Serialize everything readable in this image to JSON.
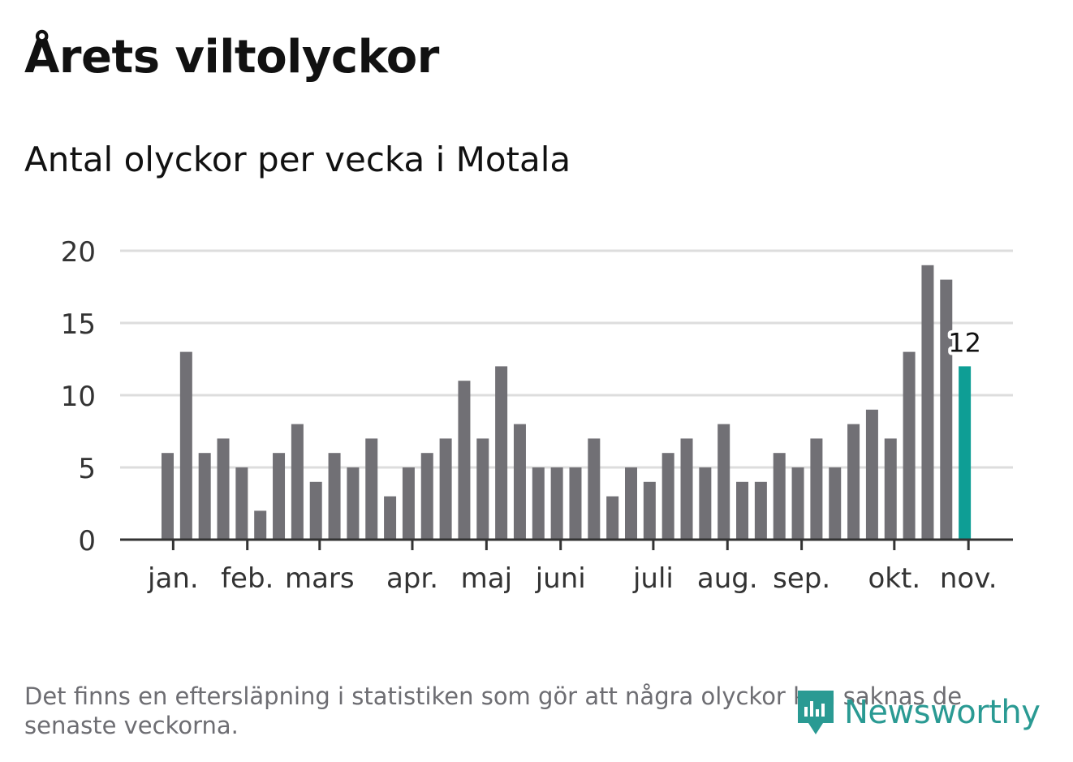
{
  "header": {
    "title": "Årets viltolyckor"
  },
  "chart_data": {
    "type": "bar",
    "title": "Årets viltolyckor",
    "subtitle": "Antal olyckor per vecka i Motala",
    "xlabel": "",
    "ylabel": "",
    "ylim": [
      0,
      20
    ],
    "yticks": [
      0,
      5,
      10,
      15,
      20
    ],
    "grid": true,
    "values": [
      6,
      13,
      6,
      7,
      5,
      2,
      6,
      8,
      4,
      6,
      5,
      7,
      3,
      5,
      6,
      7,
      11,
      7,
      12,
      8,
      5,
      5,
      5,
      7,
      3,
      5,
      4,
      6,
      7,
      5,
      8,
      4,
      4,
      6,
      5,
      7,
      5,
      8,
      9,
      7,
      13,
      19,
      18,
      12
    ],
    "month_ticks": [
      {
        "label": "jan.",
        "week": 0.3
      },
      {
        "label": "feb.",
        "week": 4.3
      },
      {
        "label": "mars",
        "week": 8.2
      },
      {
        "label": "apr.",
        "week": 13.2
      },
      {
        "label": "maj",
        "week": 17.2
      },
      {
        "label": "juni",
        "week": 21.2
      },
      {
        "label": "juli",
        "week": 26.2
      },
      {
        "label": "aug.",
        "week": 30.2
      },
      {
        "label": "sep.",
        "week": 34.2
      },
      {
        "label": "okt.",
        "week": 39.2
      },
      {
        "label": "nov.",
        "week": 43.2
      }
    ],
    "highlight": {
      "index": 43,
      "label": "12"
    },
    "colors": {
      "bar": "#717075",
      "highlight": "#0e9e95",
      "grid": "#dddddd",
      "axis": "#333333",
      "text": "#333333"
    }
  },
  "footer": {
    "note": "Det finns en eftersläpning i statistiken som gör att några olyckor kan saknas de senaste veckorna.",
    "brand": "Newsworthy",
    "brand_icon": "newsworthy-logo-icon",
    "brand_color": "#2a9a93"
  }
}
